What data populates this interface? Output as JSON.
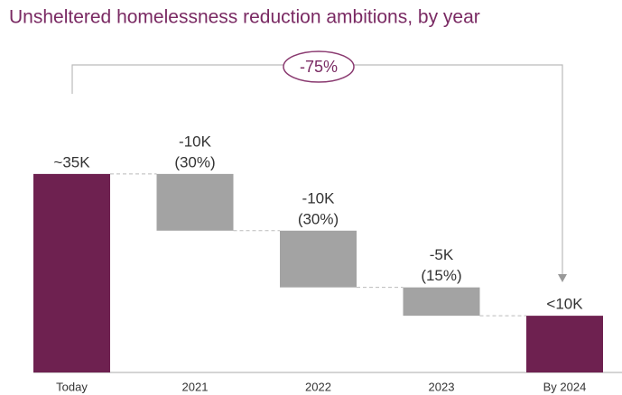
{
  "chart_data": {
    "type": "waterfall",
    "title": "Unsheltered homelessness reduction ambitions, by year",
    "categories": [
      "Today",
      "2021",
      "2022",
      "2023",
      "By 2024"
    ],
    "values": [
      35000,
      -10000,
      -10000,
      -5000,
      10000
    ],
    "value_labels": [
      "~35K",
      "-10K",
      "-10K",
      "-5K",
      "<10K"
    ],
    "share_labels": [
      null,
      "(30%)",
      "(30%)",
      "(15%)",
      null
    ],
    "measure": [
      "absolute",
      "relative",
      "relative",
      "relative",
      "total"
    ],
    "total_color": "#6e2150",
    "step_color": "#a3a3a3",
    "annotation": "-75%"
  }
}
